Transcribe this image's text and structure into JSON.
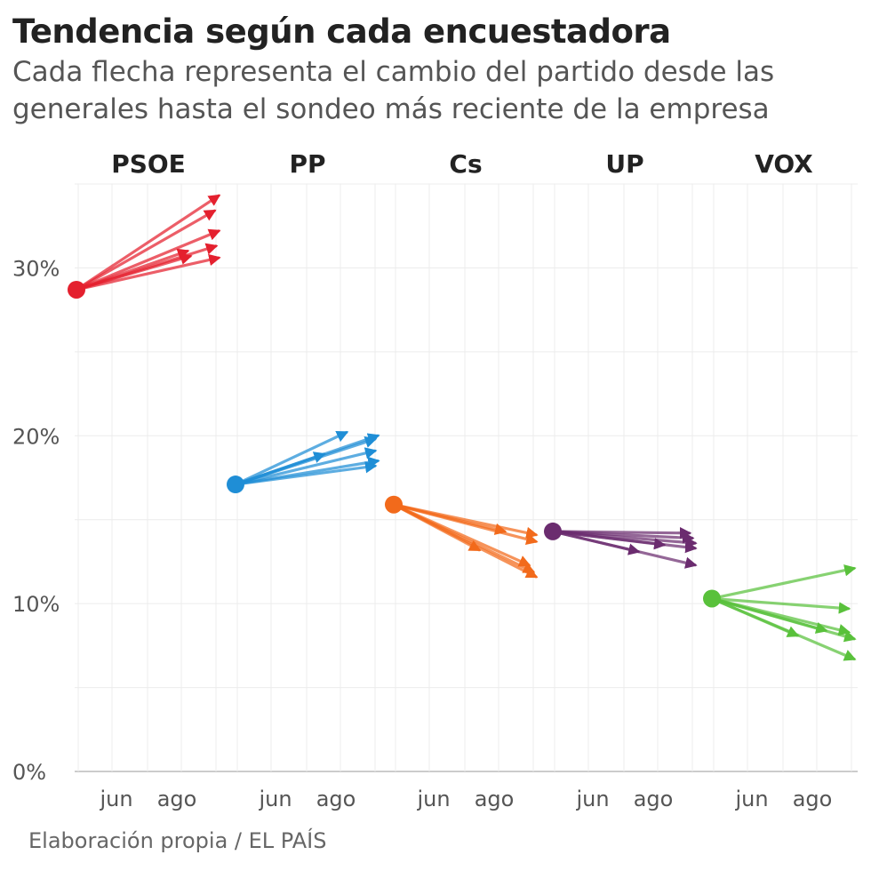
{
  "title": "Tendencia según cada encuestadora",
  "subtitle": "Cada flecha representa el cambio del partido desde las generales hasta el sondeo más reciente de la empresa",
  "source": "Elaboración propia / EL PAÍS",
  "colors": {
    "PSOE": "#e4202e",
    "PP": "#1f8ed6",
    "Cs": "#f26a1b",
    "UP": "#6b2c6f",
    "VOX": "#59c13b"
  },
  "chart_data": {
    "type": "arrow",
    "ylim": [
      0,
      35
    ],
    "y_ticks": [
      0,
      10,
      20,
      30
    ],
    "y_tick_labels": [
      "0%",
      "10%",
      "20%",
      "30%"
    ],
    "x_tick_labels": [
      "jun",
      "ago"
    ],
    "panels": [
      {
        "party": "PSOE",
        "start": 28.7,
        "arrows": [
          {
            "x": 1.0,
            "y": 34.3
          },
          {
            "x": 0.97,
            "y": 33.4
          },
          {
            "x": 1.0,
            "y": 32.2
          },
          {
            "x": 0.98,
            "y": 31.3
          },
          {
            "x": 1.0,
            "y": 30.6
          },
          {
            "x": 0.78,
            "y": 31.0
          },
          {
            "x": 0.8,
            "y": 30.7
          }
        ]
      },
      {
        "party": "PP",
        "start": 17.1,
        "arrows": [
          {
            "x": 0.78,
            "y": 20.2
          },
          {
            "x": 1.0,
            "y": 20.0
          },
          {
            "x": 0.98,
            "y": 19.8
          },
          {
            "x": 0.98,
            "y": 19.1
          },
          {
            "x": 1.0,
            "y": 18.5
          },
          {
            "x": 0.98,
            "y": 18.2
          },
          {
            "x": 0.62,
            "y": 18.9
          }
        ]
      },
      {
        "party": "Cs",
        "start": 15.9,
        "arrows": [
          {
            "x": 1.0,
            "y": 14.1
          },
          {
            "x": 1.0,
            "y": 13.7
          },
          {
            "x": 0.78,
            "y": 14.3
          },
          {
            "x": 0.95,
            "y": 12.3
          },
          {
            "x": 0.98,
            "y": 11.9
          },
          {
            "x": 1.0,
            "y": 11.6
          },
          {
            "x": 0.6,
            "y": 13.2
          }
        ]
      },
      {
        "party": "UP",
        "start": 14.3,
        "arrows": [
          {
            "x": 0.96,
            "y": 14.2
          },
          {
            "x": 0.98,
            "y": 13.9
          },
          {
            "x": 1.0,
            "y": 13.6
          },
          {
            "x": 1.0,
            "y": 13.3
          },
          {
            "x": 0.78,
            "y": 13.5
          },
          {
            "x": 1.0,
            "y": 12.3
          },
          {
            "x": 0.6,
            "y": 13.1
          }
        ]
      },
      {
        "party": "VOX",
        "start": 10.3,
        "arrows": [
          {
            "x": 1.0,
            "y": 12.1
          },
          {
            "x": 0.96,
            "y": 9.7
          },
          {
            "x": 0.96,
            "y": 8.3
          },
          {
            "x": 1.0,
            "y": 7.9
          },
          {
            "x": 0.8,
            "y": 8.4
          },
          {
            "x": 1.0,
            "y": 6.7
          },
          {
            "x": 0.6,
            "y": 8.1
          }
        ]
      }
    ]
  }
}
